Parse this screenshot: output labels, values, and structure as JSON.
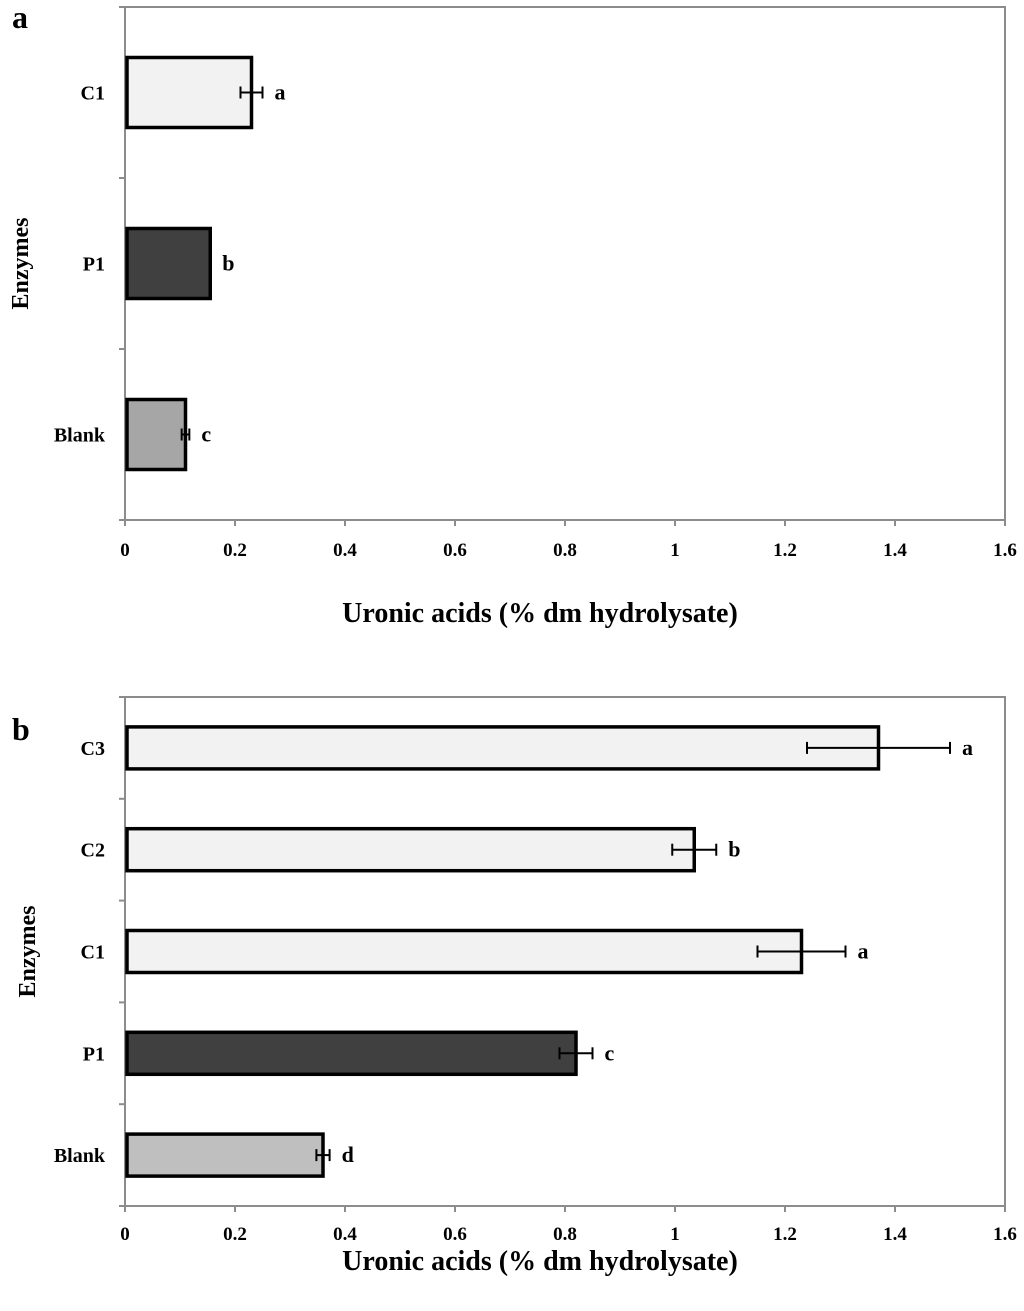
{
  "chart_data": [
    {
      "type": "bar",
      "orientation": "horizontal",
      "panel": "a",
      "xlabel": "Uronic acids (% dm hydrolysate)",
      "ylabel": "Enzymes",
      "xlim": [
        0,
        1.6
      ],
      "xticks": [
        "0",
        "0.2",
        "0.4",
        "0.6",
        "0.8",
        "1",
        "1.2",
        "1.4",
        "1.6"
      ],
      "categories": [
        "C1",
        "P1",
        "Blank"
      ],
      "values": [
        0.23,
        0.155,
        0.11
      ],
      "errors": [
        0.02,
        0.0,
        0.007
      ],
      "significance": [
        "a",
        "b",
        "c"
      ],
      "colors": [
        "#f2f2f2",
        "#404040",
        "#a6a6a6"
      ]
    },
    {
      "type": "bar",
      "orientation": "horizontal",
      "panel": "b",
      "xlabel": "Uronic acids (% dm hydrolysate)",
      "ylabel": "Enzymes",
      "xlim": [
        0,
        1.6
      ],
      "xticks": [
        "0",
        "0.2",
        "0.4",
        "0.6",
        "0.8",
        "1",
        "1.2",
        "1.4",
        "1.6"
      ],
      "categories": [
        "C3",
        "C2",
        "C1",
        "P1",
        "Blank"
      ],
      "values": [
        1.37,
        1.035,
        1.23,
        0.82,
        0.36
      ],
      "errors": [
        0.13,
        0.04,
        0.08,
        0.03,
        0.012
      ],
      "significance": [
        "a",
        "b",
        "a",
        "c",
        "d"
      ],
      "colors": [
        "#f2f2f2",
        "#f2f2f2",
        "#f2f2f2",
        "#404040",
        "#bfbfbf"
      ]
    }
  ]
}
